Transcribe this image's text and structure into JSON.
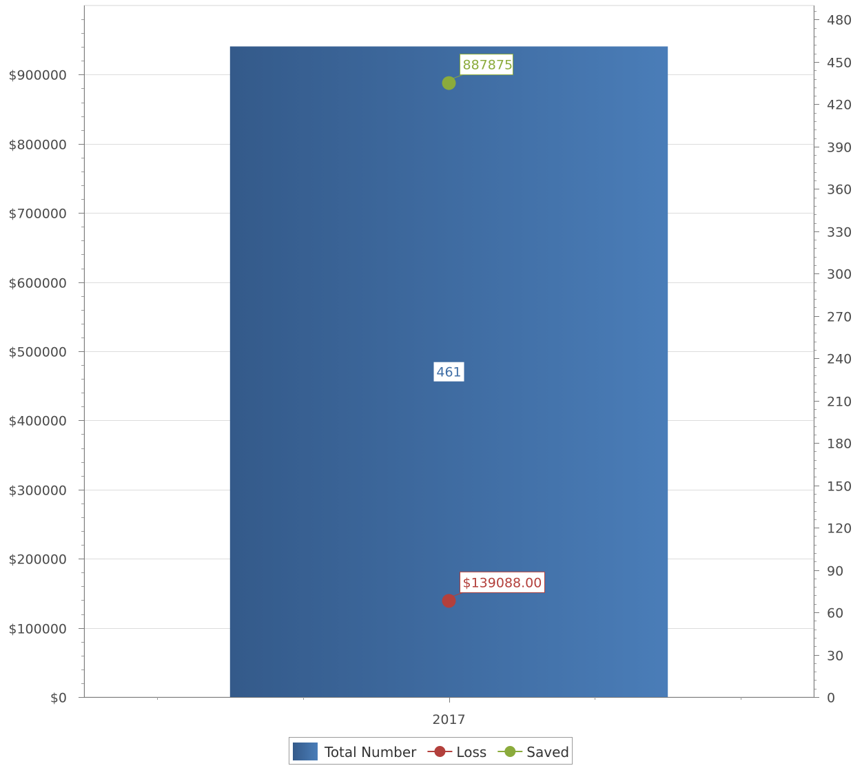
{
  "chart_data": {
    "type": "bar",
    "categories": [
      "2017"
    ],
    "left_axis": {
      "ylim": [
        0,
        1000000
      ],
      "ticks": [
        0,
        100000,
        200000,
        300000,
        400000,
        500000,
        600000,
        700000,
        800000,
        900000
      ],
      "prefix": "$"
    },
    "right_axis": {
      "ylim": [
        0,
        490
      ],
      "ticks": [
        0,
        30,
        60,
        90,
        120,
        150,
        180,
        210,
        240,
        270,
        300,
        330,
        360,
        390,
        420,
        450,
        480
      ]
    },
    "series": [
      {
        "name": "Total Number",
        "axis": "right",
        "kind": "bar",
        "values": [
          461
        ],
        "labels": [
          "461"
        ],
        "color": "#3f6ea6"
      },
      {
        "name": "Loss",
        "axis": "left",
        "kind": "line",
        "values": [
          139088
        ],
        "labels": [
          "$139088.00"
        ],
        "color": "#b3403c"
      },
      {
        "name": "Saved",
        "axis": "left",
        "kind": "line",
        "values": [
          887875
        ],
        "labels": [
          "887875"
        ],
        "color": "#8bab3c"
      }
    ],
    "grid": true,
    "legend_position": "bottom-center"
  }
}
